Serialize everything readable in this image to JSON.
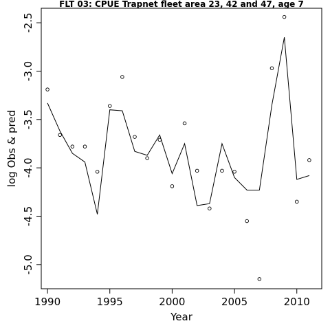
{
  "chart_data": {
    "type": "line",
    "title": "FLT 03: CPUE Trapnet fleet area 23, 42 and 47, age 7",
    "xlabel": "Year",
    "ylabel": "log Obs & pred",
    "xlim": [
      1989.5,
      2012.0
    ],
    "ylim": [
      -5.25,
      -2.35
    ],
    "xticks": [
      1990,
      1995,
      2000,
      2005,
      2010
    ],
    "xtick_labels": [
      "1990",
      "1995",
      "2000",
      "2005",
      "2010"
    ],
    "yticks": [
      -5.0,
      -4.5,
      -4.0,
      -3.5,
      -3.0,
      -2.5
    ],
    "ytick_labels": [
      "-5.0",
      "-4.5",
      "-4.0",
      "-3.5",
      "-3.0",
      "-2.5"
    ],
    "grid": false,
    "series": [
      {
        "mark": "points",
        "x": [
          1990,
          1991,
          1992,
          1993,
          1994,
          1995,
          1996,
          1997,
          1998,
          1999,
          2000,
          2001,
          2002,
          2003,
          2004,
          2005,
          2006,
          2007,
          2008,
          2009,
          2010,
          2011
        ],
        "y": [
          -3.19,
          -3.66,
          -3.78,
          -3.78,
          -4.04,
          -3.36,
          -3.06,
          -3.68,
          -3.9,
          -3.71,
          -4.19,
          -3.54,
          -4.03,
          -4.42,
          -4.03,
          -4.04,
          -4.55,
          -5.15,
          -2.97,
          -2.44,
          -4.35,
          -3.92
        ]
      },
      {
        "mark": "line",
        "x": [
          1990,
          1991,
          1992,
          1993,
          1994,
          1995,
          1996,
          1997,
          1998,
          1999,
          2000,
          2001,
          2002,
          2003,
          2004,
          2005,
          2006,
          2007,
          2008,
          2009,
          2010,
          2011
        ],
        "y": [
          -3.33,
          -3.62,
          -3.85,
          -3.94,
          -4.48,
          -3.4,
          -3.41,
          -3.83,
          -3.87,
          -3.66,
          -4.06,
          -3.75,
          -4.39,
          -4.37,
          -3.75,
          -4.1,
          -4.23,
          -4.23,
          -3.35,
          -2.65,
          -4.12,
          -4.08
        ]
      }
    ]
  }
}
